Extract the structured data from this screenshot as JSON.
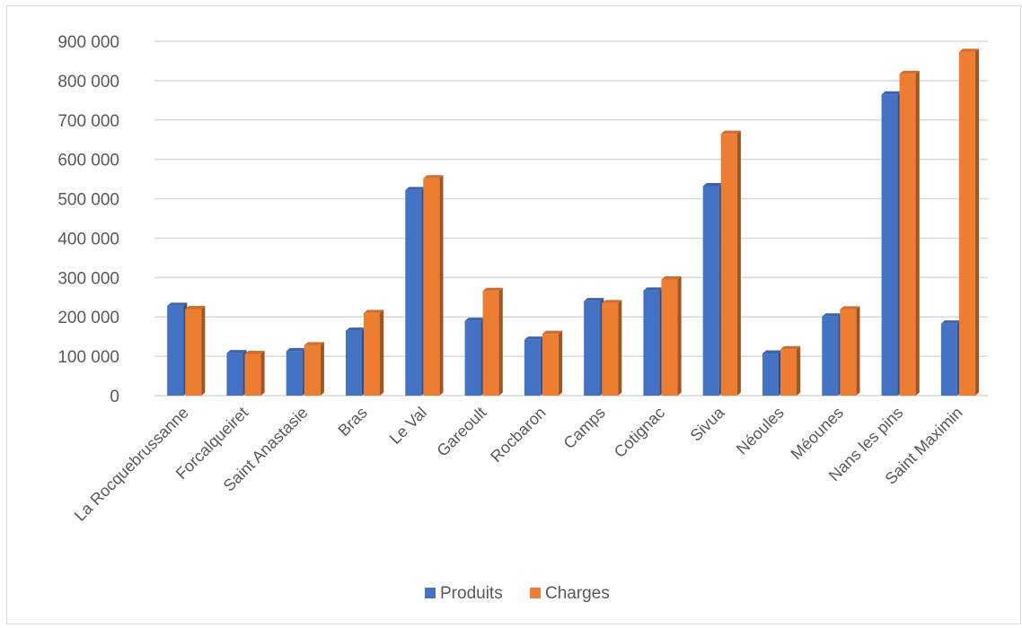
{
  "chart_data": {
    "type": "bar",
    "categories": [
      "La Rocquebrussanne",
      "Forcalqueiret",
      "Saint Anastasie",
      "Bras",
      "Le Val",
      "Gareoult",
      "Rocbaron",
      "Camps",
      "Cotignac",
      "Sivua",
      "Néoules",
      "Méounes",
      "Nans les pins",
      "Saint Maximin"
    ],
    "series": [
      {
        "name": "Produits",
        "color": "#4472c4",
        "values": [
          228000,
          108000,
          113000,
          165000,
          522000,
          190000,
          142000,
          240000,
          267000,
          532000,
          107000,
          201000,
          765000,
          183000
        ]
      },
      {
        "name": "Charges",
        "color": "#ed7d31",
        "values": [
          220000,
          106000,
          128000,
          210000,
          552000,
          266000,
          157000,
          235000,
          295000,
          665000,
          118000,
          219000,
          817000,
          873000
        ]
      }
    ],
    "ylim": [
      0,
      900000
    ],
    "yticks": [
      0,
      100000,
      200000,
      300000,
      400000,
      500000,
      600000,
      700000,
      800000,
      900000
    ],
    "ytick_labels": [
      "0",
      "100 000",
      "200 000",
      "300 000",
      "400 000",
      "500 000",
      "600 000",
      "700 000",
      "800 000",
      "900 000"
    ],
    "title": "",
    "xlabel": "",
    "ylabel": "",
    "grid": true,
    "legend_position": "bottom",
    "style": "3d-clustered-column"
  }
}
